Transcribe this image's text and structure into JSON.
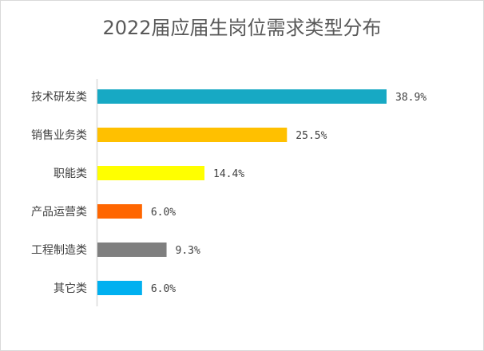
{
  "chart_data": {
    "type": "bar",
    "orientation": "horizontal",
    "title": "2022届应届生岗位需求类型分布",
    "categories": [
      "技术研发类",
      "销售业务类",
      "职能类",
      "产品运营类",
      "工程制造类",
      "其它类"
    ],
    "values": [
      38.9,
      25.5,
      14.4,
      6.0,
      9.3,
      6.0
    ],
    "value_labels": [
      "38.9%",
      "25.5%",
      "14.4%",
      "6.0%",
      "9.3%",
      "6.0%"
    ],
    "colors": [
      "#17a9c4",
      "#ffc000",
      "#ffff00",
      "#ff6600",
      "#7f7f7f",
      "#00b0f0"
    ],
    "grid": false,
    "legend": "none"
  }
}
